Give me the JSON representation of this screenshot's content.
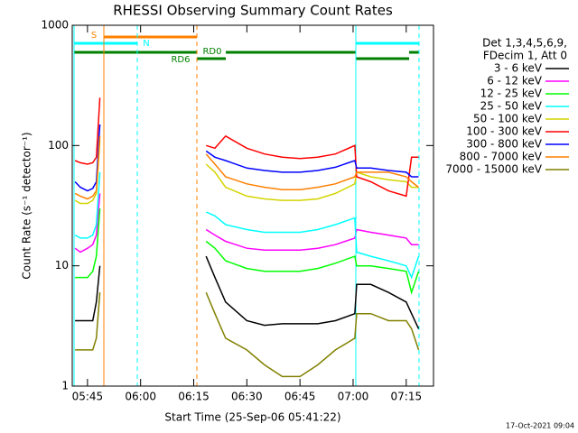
{
  "chart_data": {
    "type": "line",
    "title": "RHESSI Observing Summary Count Rates",
    "xlabel": "Start Time (25-Sep-06 05:41:22)",
    "ylabel": "Count Rate (s⁻¹ detector⁻¹)",
    "log_y": true,
    "xlim": [
      340.7,
      442.7
    ],
    "ylim": [
      1,
      1000
    ],
    "xticks": [
      {
        "value": 345,
        "label": "05:45"
      },
      {
        "value": 360,
        "label": "06:00"
      },
      {
        "value": 375,
        "label": "06:15"
      },
      {
        "value": 390,
        "label": "06:30"
      },
      {
        "value": 405,
        "label": "06:45"
      },
      {
        "value": 420,
        "label": "07:00"
      },
      {
        "value": 435,
        "label": "07:15"
      }
    ],
    "yticks": [
      1,
      10,
      100,
      1000
    ],
    "legend_header": [
      "Det 1,3,4,5,6,9,",
      "FDecim 1, Att 0"
    ],
    "annotations": [
      "S",
      "N",
      "RD0",
      "RD6"
    ],
    "timestamp": "17-Oct-2021 09:04",
    "x": [
      341.5,
      343,
      345,
      346.5,
      347.5,
      348.5,
      360,
      378.5,
      381,
      384,
      390,
      395,
      400,
      405,
      410,
      415,
      420.5,
      421,
      425,
      430,
      435,
      436.5,
      438.5
    ],
    "series": [
      {
        "name": "3 - 6 keV",
        "color": "#000000",
        "values": [
          3.5,
          3.5,
          3.5,
          3.5,
          5,
          10,
          null,
          12,
          8,
          5,
          3.5,
          3.2,
          3.3,
          3.3,
          3.3,
          3.5,
          4,
          7,
          7,
          6,
          5,
          4,
          3
        ]
      },
      {
        "name": "6 - 12 keV",
        "color": "#ff00ff",
        "values": [
          14,
          13,
          14,
          15,
          18,
          40,
          null,
          20,
          18,
          16,
          14,
          13.5,
          13.5,
          13.5,
          14,
          15,
          17,
          20,
          19,
          18,
          17,
          15,
          15
        ]
      },
      {
        "name": "12 - 25 keV",
        "color": "#00ff00",
        "values": [
          8,
          8,
          8,
          9,
          12,
          30,
          null,
          16,
          14,
          11,
          9.5,
          9,
          9,
          9,
          9.5,
          10.5,
          12,
          10,
          10,
          9.5,
          9,
          6,
          9
        ]
      },
      {
        "name": "25 - 50 keV",
        "color": "#00ffff",
        "values": [
          18,
          17,
          17,
          18,
          22,
          60,
          null,
          28,
          26,
          22,
          20,
          19,
          19,
          19,
          20,
          22,
          25,
          13,
          12,
          11,
          10,
          8,
          12
        ]
      },
      {
        "name": "50 - 100 keV",
        "color": "#d4d400",
        "values": [
          35,
          33,
          33,
          35,
          40,
          110,
          null,
          70,
          60,
          45,
          38,
          36,
          35,
          35,
          36,
          40,
          48,
          60,
          55,
          52,
          50,
          45,
          45
        ]
      },
      {
        "name": "100 - 300 keV",
        "color": "#ff0000",
        "values": [
          75,
          72,
          70,
          72,
          80,
          250,
          null,
          100,
          95,
          120,
          95,
          85,
          80,
          78,
          80,
          85,
          100,
          55,
          50,
          42,
          38,
          80,
          80
        ]
      },
      {
        "name": "300 - 800 keV",
        "color": "#0000ff",
        "values": [
          50,
          45,
          42,
          44,
          50,
          150,
          null,
          90,
          80,
          75,
          65,
          62,
          60,
          60,
          62,
          66,
          75,
          65,
          65,
          62,
          60,
          55,
          55
        ]
      },
      {
        "name": "800 - 7000 keV",
        "color": "#ff8000",
        "values": [
          40,
          38,
          36,
          38,
          42,
          120,
          null,
          85,
          70,
          55,
          48,
          45,
          43,
          43,
          45,
          48,
          55,
          60,
          60,
          60,
          55,
          50,
          45
        ]
      },
      {
        "name": "7000 - 15000 keV",
        "color": "#808000",
        "values": [
          2,
          2,
          2,
          2,
          2.5,
          6,
          null,
          6,
          4,
          2.5,
          2,
          1.5,
          1.2,
          1.2,
          1.5,
          2,
          2.5,
          4,
          4,
          3.5,
          3.5,
          3,
          2
        ]
      }
    ]
  }
}
